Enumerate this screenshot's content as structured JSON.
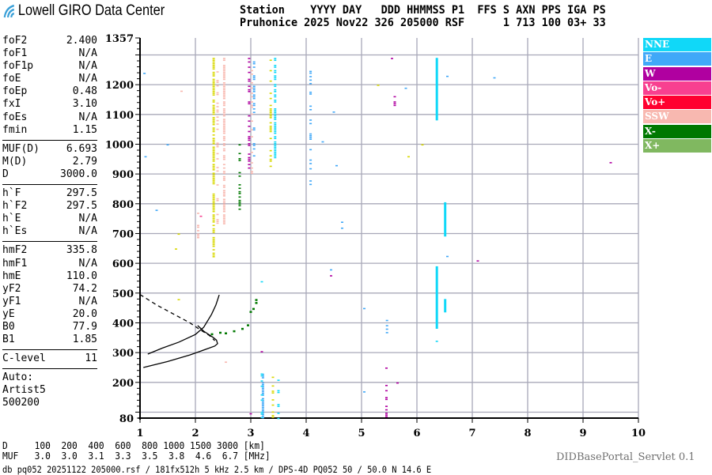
{
  "header": {
    "logo_text": "Lowell GIRO Data Center",
    "labels_line": "Station    YYYY DAY   DDD HHMMSS P1  FFS S AXN PPS IGA PS",
    "values_line": "Pruhonice 2025 Nov22 326 205000 RSF      1 713 100 03+ 33"
  },
  "params": [
    [
      {
        "k": "foF2",
        "v": "2.400"
      },
      {
        "k": "foF1",
        "v": "N/A"
      },
      {
        "k": "foF1p",
        "v": "N/A"
      },
      {
        "k": "foE",
        "v": "N/A"
      },
      {
        "k": "foEp",
        "v": "0.48"
      },
      {
        "k": "fxI",
        "v": "3.10"
      },
      {
        "k": "foEs",
        "v": "N/A"
      },
      {
        "k": "fmin",
        "v": "1.15"
      }
    ],
    [
      {
        "k": "MUF(D)",
        "v": "6.693"
      },
      {
        "k": "M(D)",
        "v": "2.79"
      },
      {
        "k": "D",
        "v": "3000.0"
      }
    ],
    [
      {
        "k": "h`F",
        "v": "297.5"
      },
      {
        "k": "h`F2",
        "v": "297.5"
      },
      {
        "k": "h`E",
        "v": "N/A"
      },
      {
        "k": "h`Es",
        "v": "N/A"
      }
    ],
    [
      {
        "k": "hmF2",
        "v": "335.8"
      },
      {
        "k": "hmF1",
        "v": "N/A"
      },
      {
        "k": "hmE",
        "v": "110.0"
      },
      {
        "k": "yF2",
        "v": "74.2"
      },
      {
        "k": "yF1",
        "v": "N/A"
      },
      {
        "k": "yE",
        "v": "20.0"
      },
      {
        "k": "B0",
        "v": "77.9"
      },
      {
        "k": "B1",
        "v": "1.85"
      }
    ],
    [
      {
        "k": "C-level",
        "v": "11"
      }
    ]
  ],
  "autoscaling": {
    "line1": "Auto:",
    "line2": "Artist5",
    "line3": "500200"
  },
  "legend": [
    {
      "label": "NNE",
      "color": "#10d8f8"
    },
    {
      "label": "E",
      "color": "#40a8f8"
    },
    {
      "label": "W",
      "color": "#b000a0"
    },
    {
      "label": "Vo-",
      "color": "#f84090"
    },
    {
      "label": "Vo+",
      "color": "#ff0030"
    },
    {
      "label": "SSW",
      "color": "#f8b8b0"
    },
    {
      "label": "X-",
      "color": "#007800"
    },
    {
      "label": "X+",
      "color": "#80b860"
    }
  ],
  "bottom": {
    "d_line": "D     100  200  400  600  800 1000 1500 3000 [km]",
    "muf_line": "MUF   3.0  3.0  3.1  3.3  3.5  3.8  4.6  6.7 [MHz]",
    "footer": "db pq052 20251122 205000.rsf / 181fx512h 5 kHz 2.5 km / DPS-4D PQ052 50 / 50.0 N 14.6 E",
    "servlet": "DIDBasePortal_Servlet 0.1"
  },
  "chart_data": {
    "type": "scatter",
    "xlabel": "",
    "ylabel": "",
    "xlim": [
      1,
      10
    ],
    "ylim": [
      80,
      1357
    ],
    "x_ticks": [
      "1",
      "2",
      "3",
      "4",
      "5",
      "6",
      "7",
      "8",
      "9",
      "10"
    ],
    "y_ticks": [
      "1357",
      "1200",
      "1100",
      "1000",
      "900",
      "800",
      "700",
      "600",
      "500",
      "400",
      "300",
      "200",
      "80"
    ],
    "grid": true,
    "legend_placement": "right",
    "unlabeled_color": "#d8d800",
    "echo_columns": [
      {
        "f": 2.33,
        "h": [
          620,
          1290
        ],
        "mode": "unlabeled",
        "style": "dense"
      },
      {
        "f": 2.52,
        "h": [
          730,
          1290
        ],
        "mode": "SSW",
        "style": "dense"
      },
      {
        "f": 2.4,
        "h": [
          700,
          1280
        ],
        "mode": "SSW",
        "style": "sparse"
      },
      {
        "f": 2.97,
        "h": [
          900,
          1290
        ],
        "mode": "W",
        "style": "sparse"
      },
      {
        "f": 3.02,
        "h": [
          900,
          1290
        ],
        "mode": "SSW",
        "style": "sparse"
      },
      {
        "f": 3.06,
        "h": [
          950,
          1290
        ],
        "mode": "E",
        "style": "sparse"
      },
      {
        "f": 3.36,
        "h": [
          900,
          1290
        ],
        "mode": "unlabeled",
        "style": "sparse"
      },
      {
        "f": 3.44,
        "h": [
          950,
          1290
        ],
        "mode": "NNE",
        "style": "dense"
      },
      {
        "f": 4.08,
        "h": [
          850,
          1270
        ],
        "mode": "E",
        "style": "sparse"
      },
      {
        "f": 6.36,
        "h": [
          1080,
          1290
        ],
        "mode": "NNE",
        "style": "solid"
      },
      {
        "f": 6.36,
        "h": [
          380,
          590
        ],
        "mode": "NNE",
        "style": "solid"
      },
      {
        "f": 6.51,
        "h": [
          690,
          805
        ],
        "mode": "NNE",
        "style": "solid"
      },
      {
        "f": 6.51,
        "h": [
          435,
          480
        ],
        "mode": "NNE",
        "style": "solid"
      },
      {
        "f": 5.6,
        "h": [
          1130,
          1185
        ],
        "mode": "W",
        "style": "sparse"
      },
      {
        "f": 3.22,
        "h": [
          80,
          235
        ],
        "mode": "E",
        "style": "dense"
      },
      {
        "f": 3.2,
        "h": [
          80,
          230
        ],
        "mode": "NNE",
        "style": "sparse"
      },
      {
        "f": 3.4,
        "h": [
          80,
          225
        ],
        "mode": "unlabeled",
        "style": "sparse"
      },
      {
        "f": 3.5,
        "h": [
          80,
          215
        ],
        "mode": "NNE",
        "style": "sparse"
      },
      {
        "f": 5.45,
        "h": [
          80,
          250
        ],
        "mode": "W",
        "style": "sparse"
      },
      {
        "f": 5.46,
        "h": [
          330,
          410
        ],
        "mode": "E",
        "style": "sparse"
      },
      {
        "f": 2.05,
        "h": [
          650,
          770
        ],
        "mode": "SSW",
        "style": "sparse"
      },
      {
        "f": 2.8,
        "h": [
          780,
          1000
        ],
        "mode": "X-",
        "style": "sparse"
      },
      {
        "f": 3.0,
        "h": [
          80,
          120
        ],
        "mode": "W",
        "style": "sparse"
      }
    ],
    "echo_points": [
      [
        1.08,
        1240,
        "E"
      ],
      [
        1.1,
        960,
        "E"
      ],
      [
        1.3,
        780,
        "E"
      ],
      [
        1.5,
        1000,
        "E"
      ],
      [
        1.7,
        700,
        "unlabeled"
      ],
      [
        1.65,
        650,
        "unlabeled"
      ],
      [
        1.7,
        480,
        "unlabeled"
      ],
      [
        1.75,
        1180,
        "SSW"
      ],
      [
        2.1,
        760,
        "Vo-"
      ],
      [
        2.55,
        270,
        "SSW"
      ],
      [
        3.2,
        540,
        "NNE"
      ],
      [
        3.2,
        305,
        "W"
      ],
      [
        4.3,
        1010,
        "E"
      ],
      [
        4.55,
        930,
        "E"
      ],
      [
        4.5,
        1110,
        "E"
      ],
      [
        4.45,
        580,
        "E"
      ],
      [
        4.45,
        560,
        "W"
      ],
      [
        4.65,
        740,
        "E"
      ],
      [
        4.65,
        720,
        "E"
      ],
      [
        5.05,
        450,
        "E"
      ],
      [
        5.05,
        170,
        "E"
      ],
      [
        5.3,
        1200,
        "unlabeled"
      ],
      [
        5.55,
        1290,
        "W"
      ],
      [
        5.8,
        1190,
        "E"
      ],
      [
        5.85,
        960,
        "unlabeled"
      ],
      [
        6.1,
        1000,
        "unlabeled"
      ],
      [
        6.55,
        1230,
        "E"
      ],
      [
        6.55,
        625,
        "E"
      ],
      [
        7.1,
        610,
        "W"
      ],
      [
        7.4,
        1225,
        "E"
      ],
      [
        9.5,
        940,
        "W"
      ],
      [
        5.65,
        200,
        "W"
      ],
      [
        6.36,
        340,
        "NNE"
      ]
    ],
    "traces": {
      "o_trace": [
        [
          1.14,
          295
        ],
        [
          1.4,
          315
        ],
        [
          1.7,
          335
        ],
        [
          2.0,
          361
        ],
        [
          2.15,
          385
        ],
        [
          2.29,
          428
        ],
        [
          2.37,
          460
        ],
        [
          2.43,
          494
        ]
      ],
      "x_trace_lower": [
        [
          1.06,
          250
        ],
        [
          1.5,
          270
        ],
        [
          1.9,
          292
        ],
        [
          2.2,
          312
        ],
        [
          2.35,
          322
        ],
        [
          2.4,
          330
        ],
        [
          2.38,
          342
        ],
        [
          2.32,
          351
        ],
        [
          2.15,
          372
        ],
        [
          2.04,
          391
        ]
      ],
      "x_trace_dashed": [
        [
          1.0,
          495
        ],
        [
          1.3,
          460
        ],
        [
          1.6,
          430
        ],
        [
          1.9,
          400
        ],
        [
          2.1,
          375
        ],
        [
          2.25,
          358
        ],
        [
          2.35,
          340
        ]
      ],
      "x_points": [
        [
          2.3,
          365
        ],
        [
          2.55,
          368
        ],
        [
          2.7,
          375
        ],
        [
          2.85,
          383
        ],
        [
          2.95,
          395
        ],
        [
          3.0,
          440
        ],
        [
          3.05,
          450
        ],
        [
          3.1,
          470
        ],
        [
          3.1,
          480
        ],
        [
          2.45,
          370
        ]
      ]
    }
  }
}
